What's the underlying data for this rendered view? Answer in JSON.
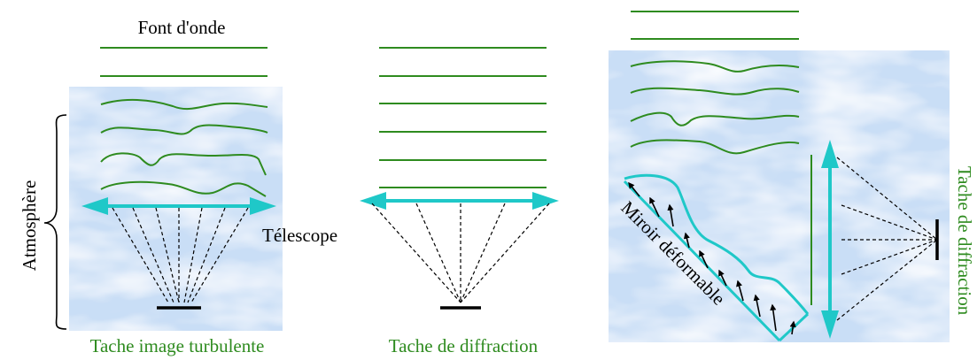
{
  "labels": {
    "wavefront": "Font d'onde",
    "atmosphere": "Atmosphère",
    "telescope": "Télescope",
    "turbulent_image": "Tache image turbulente",
    "diffraction_spot": "Tache de diffraction",
    "deformable_mirror": "Miroir déformable",
    "diffraction_spot_vertical": "Tache de diffraction"
  },
  "colors": {
    "wave": "#2e8b1f",
    "optic": "#1fc8c8",
    "caption": "#2e8b1f",
    "sky": "#cfe3f8",
    "ink": "#000000"
  }
}
